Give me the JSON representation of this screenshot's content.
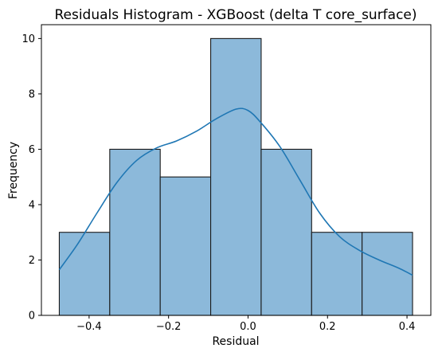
{
  "chart_data": {
    "type": "bar",
    "title": "Residuals Histogram - XGBoost (delta T core_surface)",
    "xlabel": "Residual",
    "ylabel": "Frequency",
    "xlim": [
      -0.52,
      0.46
    ],
    "ylim": [
      0,
      10.5
    ],
    "bin_edges": [
      -0.475,
      -0.348,
      -0.221,
      -0.094,
      0.033,
      0.16,
      0.287,
      0.414
    ],
    "values": [
      3,
      6,
      5,
      10,
      6,
      3,
      3
    ],
    "x_ticks": [
      -0.4,
      -0.2,
      0.0,
      0.2,
      0.4
    ],
    "x_tick_labels": [
      "−0.4",
      "−0.2",
      "0.0",
      "0.2",
      "0.4"
    ],
    "y_ticks": [
      0,
      2,
      4,
      6,
      8,
      10
    ],
    "y_tick_labels": [
      "0",
      "2",
      "4",
      "6",
      "8",
      "10"
    ],
    "kde": {
      "x": [
        -0.475,
        -0.43,
        -0.38,
        -0.33,
        -0.28,
        -0.23,
        -0.18,
        -0.13,
        -0.08,
        -0.03,
        0.0,
        0.03,
        0.08,
        0.13,
        0.18,
        0.23,
        0.28,
        0.33,
        0.38,
        0.414
      ],
      "y": [
        1.65,
        2.55,
        3.7,
        4.8,
        5.6,
        6.05,
        6.3,
        6.65,
        7.1,
        7.45,
        7.4,
        7.0,
        6.1,
        4.9,
        3.7,
        2.85,
        2.35,
        2.0,
        1.7,
        1.45
      ]
    },
    "grid": false,
    "colors": {
      "bar_fill": "#8cb9da",
      "bar_edge": "#1a1a1a",
      "kde_line": "#1f77b4"
    }
  }
}
